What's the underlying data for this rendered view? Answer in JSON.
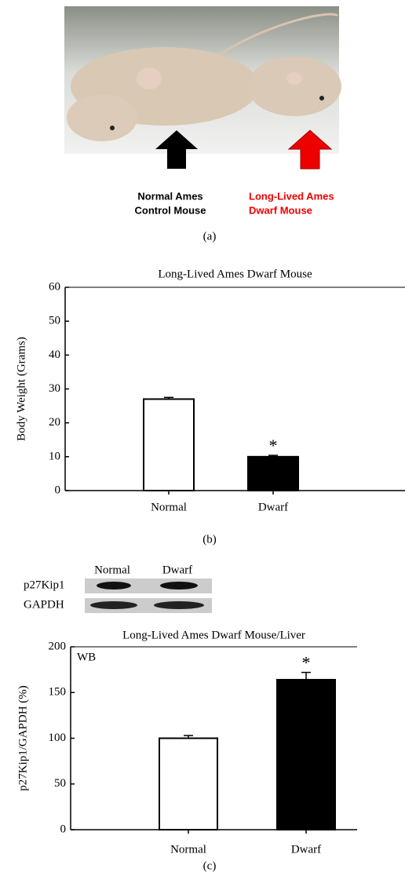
{
  "photo": {
    "left_label": [
      "Normal Ames",
      "Control Mouse"
    ],
    "right_label": [
      "Long-Lived Ames",
      "Dwarf Mouse"
    ]
  },
  "panels": [
    "(a)",
    "(b)",
    "(c)"
  ],
  "blot": {
    "lanes": [
      "Normal",
      "Dwarf"
    ],
    "rows": [
      "p27Kip1",
      "GAPDH"
    ]
  },
  "chart_data": [
    {
      "type": "bar",
      "title": "Long-Lived Ames Dwarf Mouse",
      "y_label": "Body Weight (Grams)",
      "categories": [
        "Normal",
        "Dwarf"
      ],
      "values": [
        27,
        10
      ],
      "errors": [
        0.5,
        0.4
      ],
      "colors": [
        "#ffffff",
        "#000000"
      ],
      "ylim": [
        0,
        60
      ],
      "yticks": [
        0,
        10,
        20,
        30,
        40,
        50,
        60
      ],
      "annotations": [
        "*"
      ]
    },
    {
      "type": "bar",
      "title": "Long-Lived Ames Dwarf Mouse/Liver",
      "y_label": "p27Kip1/GAPDH (%)",
      "categories": [
        "Normal",
        "Dwarf"
      ],
      "values": [
        100,
        164
      ],
      "errors": [
        3,
        8
      ],
      "colors": [
        "#ffffff",
        "#000000"
      ],
      "ylim": [
        0,
        200
      ],
      "yticks": [
        0,
        50,
        100,
        150,
        200
      ],
      "annotations": [
        "*"
      ],
      "method_label": "WB"
    }
  ]
}
